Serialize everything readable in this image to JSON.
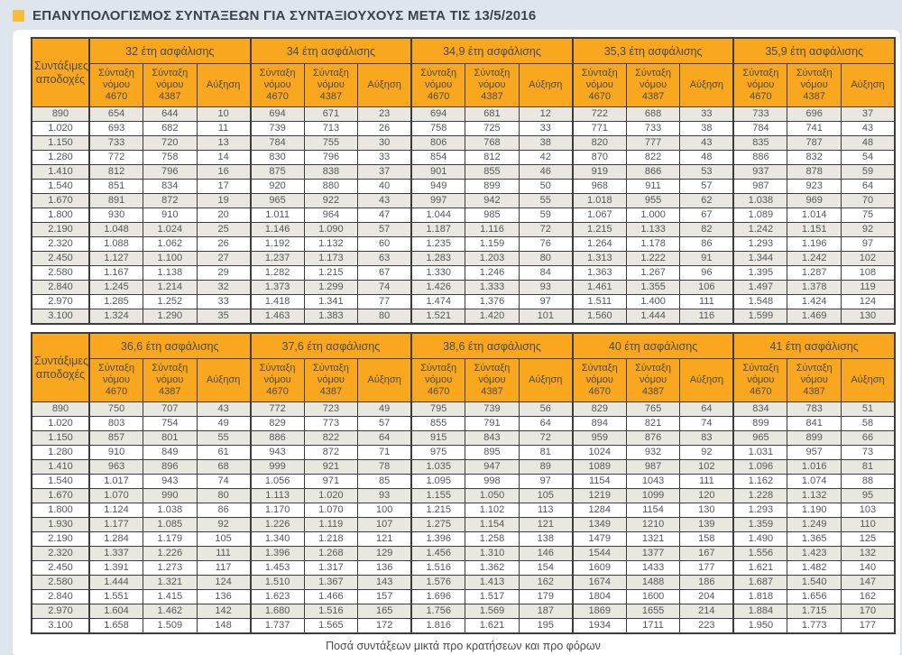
{
  "page_title": "ΕΠΑΝΥΠΟΛΟΓΙΣΜΟΣ ΣΥΝΤΑΞΕΩΝ ΓΙΑ ΣΥΝΤΑΞΙΟΥΧΟΥΣ ΜΕΤΑ ΤΙΣ 13/5/2016",
  "footer_note": "Ποσά συντάξεων μικτά προ κρατήσεων και προ φόρων",
  "colors": {
    "page_bg": "#DFE5EC",
    "header_bg": "#F8A71F",
    "title_bullet": "#F8BE39",
    "row_stripe": "#E8E8E0",
    "border": "#3D3D3D"
  },
  "chart_data": [
    {
      "type": "table",
      "earnings_label": "Συντάξιμες αποδοχές",
      "group_headers": [
        "32 έτη ασφάλισης",
        "34 έτη ασφάλισης",
        "34,9 έτη ασφάλισης",
        "35,3 έτη ασφάλισης",
        "35,9 έτη ασφάλισης"
      ],
      "sub_headers": [
        "Σύνταξη νόμου 4670",
        "Σύνταξη νόμου 4387",
        "Αύξηση"
      ],
      "rows": [
        [
          "890",
          "654",
          "644",
          "10",
          "694",
          "671",
          "23",
          "694",
          "681",
          "12",
          "722",
          "688",
          "33",
          "733",
          "696",
          "37"
        ],
        [
          "1.020",
          "693",
          "682",
          "11",
          "739",
          "713",
          "26",
          "758",
          "725",
          "33",
          "771",
          "733",
          "38",
          "784",
          "741",
          "43"
        ],
        [
          "1.150",
          "733",
          "720",
          "13",
          "784",
          "755",
          "30",
          "806",
          "768",
          "38",
          "820",
          "777",
          "43",
          "835",
          "787",
          "48"
        ],
        [
          "1.280",
          "772",
          "758",
          "14",
          "830",
          "796",
          "33",
          "854",
          "812",
          "42",
          "870",
          "822",
          "48",
          "886",
          "832",
          "54"
        ],
        [
          "1.410",
          "812",
          "796",
          "16",
          "875",
          "838",
          "37",
          "901",
          "855",
          "46",
          "919",
          "866",
          "53",
          "937",
          "878",
          "59"
        ],
        [
          "1.540",
          "851",
          "834",
          "17",
          "920",
          "880",
          "40",
          "949",
          "899",
          "50",
          "968",
          "911",
          "57",
          "987",
          "923",
          "64"
        ],
        [
          "1.670",
          "891",
          "872",
          "19",
          "965",
          "922",
          "43",
          "997",
          "942",
          "55",
          "1.018",
          "955",
          "62",
          "1.038",
          "969",
          "70"
        ],
        [
          "1.800",
          "930",
          "910",
          "20",
          "1.011",
          "964",
          "47",
          "1.044",
          "985",
          "59",
          "1.067",
          "1.000",
          "67",
          "1.089",
          "1.014",
          "75"
        ],
        [
          "2.190",
          "1.048",
          "1.024",
          "25",
          "1.146",
          "1.090",
          "57",
          "1.187",
          "1.116",
          "72",
          "1.215",
          "1.133",
          "82",
          "1.242",
          "1.151",
          "92"
        ],
        [
          "2.320",
          "1.088",
          "1.062",
          "26",
          "1.192",
          "1.132",
          "60",
          "1.235",
          "1.159",
          "76",
          "1.264",
          "1.178",
          "86",
          "1.293",
          "1.196",
          "97"
        ],
        [
          "2.450",
          "1.127",
          "1.100",
          "27",
          "1.237",
          "1.173",
          "63",
          "1.283",
          "1.203",
          "80",
          "1.313",
          "1.222",
          "91",
          "1.344",
          "1.242",
          "102"
        ],
        [
          "2.580",
          "1.167",
          "1.138",
          "29",
          "1.282",
          "1.215",
          "67",
          "1.330",
          "1.246",
          "84",
          "1.363",
          "1.267",
          "96",
          "1.395",
          "1.287",
          "108"
        ],
        [
          "2.840",
          "1.245",
          "1.214",
          "32",
          "1.373",
          "1.299",
          "74",
          "1.426",
          "1.333",
          "93",
          "1.461",
          "1.355",
          "106",
          "1.497",
          "1.378",
          "119"
        ],
        [
          "2.970",
          "1.285",
          "1.252",
          "33",
          "1.418",
          "1.341",
          "77",
          "1.474",
          "1.376",
          "97",
          "1.511",
          "1.400",
          "111",
          "1.548",
          "1.424",
          "124"
        ],
        [
          "3.100",
          "1.324",
          "1.290",
          "35",
          "1.463",
          "1.383",
          "80",
          "1.521",
          "1.420",
          "101",
          "1.560",
          "1.444",
          "116",
          "1.599",
          "1.469",
          "130"
        ]
      ]
    },
    {
      "type": "table",
      "earnings_label": "Συντάξιμες αποδοχές",
      "group_headers": [
        "36,6 έτη ασφάλισης",
        "37,6 έτη ασφάλισης",
        "38,6 έτη ασφάλισης",
        "40 έτη ασφάλισης",
        "41 έτη ασφάλισης"
      ],
      "sub_headers": [
        "Σύνταξη νόμου 4670",
        "Σύνταξη νόμου 4387",
        "Αύξηση"
      ],
      "rows": [
        [
          "890",
          "750",
          "707",
          "43",
          "772",
          "723",
          "49",
          "795",
          "739",
          "56",
          "829",
          "765",
          "64",
          "834",
          "783",
          "51"
        ],
        [
          "1.020",
          "803",
          "754",
          "49",
          "829",
          "773",
          "57",
          "855",
          "791",
          "64",
          "894",
          "821",
          "74",
          "899",
          "841",
          "58"
        ],
        [
          "1.150",
          "857",
          "801",
          "55",
          "886",
          "822",
          "64",
          "915",
          "843",
          "72",
          "959",
          "876",
          "83",
          "965",
          "899",
          "66"
        ],
        [
          "1.280",
          "910",
          "849",
          "61",
          "943",
          "872",
          "71",
          "975",
          "895",
          "81",
          "1024",
          "932",
          "92",
          "1.031",
          "957",
          "73"
        ],
        [
          "1.410",
          "963",
          "896",
          "68",
          "999",
          "921",
          "78",
          "1.035",
          "947",
          "89",
          "1089",
          "987",
          "102",
          "1.096",
          "1.016",
          "81"
        ],
        [
          "1.540",
          "1.017",
          "943",
          "74",
          "1.056",
          "971",
          "85",
          "1.095",
          "998",
          "97",
          "1154",
          "1043",
          "111",
          "1.162",
          "1.074",
          "88"
        ],
        [
          "1.670",
          "1.070",
          "990",
          "80",
          "1.113",
          "1.020",
          "93",
          "1.155",
          "1.050",
          "105",
          "1219",
          "1099",
          "120",
          "1.228",
          "1.132",
          "95"
        ],
        [
          "1.800",
          "1.124",
          "1.038",
          "86",
          "1.170",
          "1.070",
          "100",
          "1.215",
          "1.102",
          "113",
          "1284",
          "1154",
          "130",
          "1.293",
          "1.190",
          "103"
        ],
        [
          "1.930",
          "1.177",
          "1.085",
          "92",
          "1.226",
          "1.119",
          "107",
          "1.275",
          "1.154",
          "121",
          "1349",
          "1210",
          "139",
          "1.359",
          "1.249",
          "110"
        ],
        [
          "2.190",
          "1.284",
          "1.179",
          "105",
          "1.340",
          "1.218",
          "121",
          "1.396",
          "1.258",
          "138",
          "1479",
          "1321",
          "158",
          "1.490",
          "1.365",
          "125"
        ],
        [
          "2.320",
          "1.337",
          "1.226",
          "111",
          "1.396",
          "1.268",
          "129",
          "1.456",
          "1.310",
          "146",
          "1544",
          "1377",
          "167",
          "1.556",
          "1.423",
          "132"
        ],
        [
          "2.450",
          "1.391",
          "1.273",
          "117",
          "1.453",
          "1.317",
          "136",
          "1.516",
          "1.362",
          "154",
          "1609",
          "1433",
          "177",
          "1.621",
          "1.482",
          "140"
        ],
        [
          "2.580",
          "1.444",
          "1.321",
          "124",
          "1.510",
          "1.367",
          "143",
          "1.576",
          "1.413",
          "162",
          "1674",
          "1488",
          "186",
          "1.687",
          "1.540",
          "147"
        ],
        [
          "2.840",
          "1.551",
          "1.415",
          "136",
          "1.623",
          "1.466",
          "157",
          "1.696",
          "1.517",
          "179",
          "1804",
          "1600",
          "204",
          "1.818",
          "1.656",
          "162"
        ],
        [
          "2.970",
          "1.604",
          "1.462",
          "142",
          "1.680",
          "1.516",
          "165",
          "1.756",
          "1.569",
          "187",
          "1869",
          "1655",
          "214",
          "1.884",
          "1.715",
          "170"
        ],
        [
          "3.100",
          "1.658",
          "1.509",
          "148",
          "1.737",
          "1.565",
          "172",
          "1.816",
          "1.621",
          "195",
          "1934",
          "1711",
          "223",
          "1.950",
          "1.773",
          "177"
        ]
      ]
    }
  ]
}
